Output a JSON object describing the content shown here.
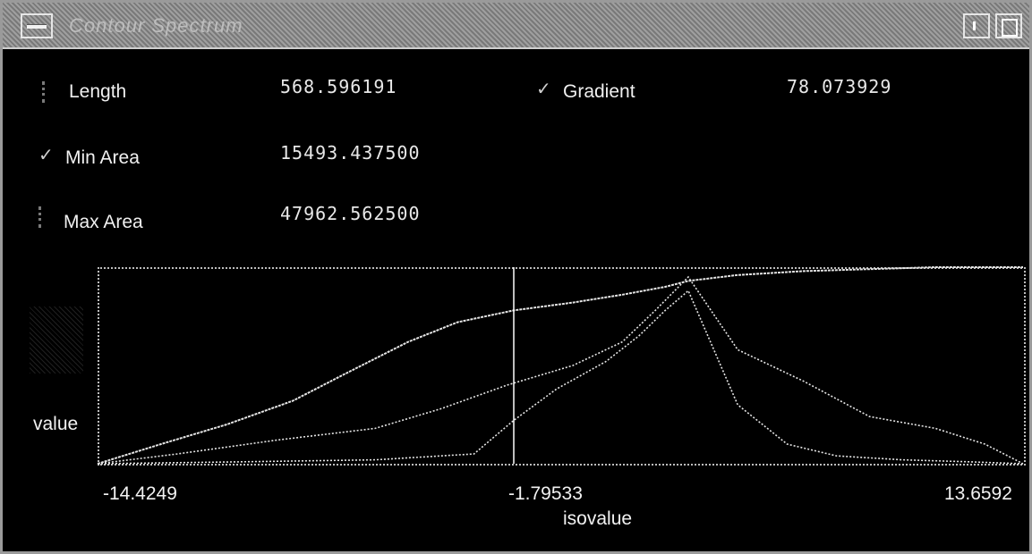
{
  "window": {
    "title": "Contour Spectrum",
    "menu_icon": "window-menu-icon",
    "minimize_icon": "minimize-icon",
    "maximize_icon": "maximize-icon"
  },
  "fields": {
    "length": {
      "label": "Length",
      "value": "568.596191",
      "checked": false
    },
    "gradient": {
      "label": "Gradient",
      "value": "78.073929",
      "checked": true
    },
    "min_area": {
      "label": "Min Area",
      "value": "15493.437500",
      "checked": true
    },
    "max_area": {
      "label": "Max Area",
      "value": "47962.562500",
      "checked": false
    }
  },
  "plot": {
    "ylabel": "value",
    "xlabel": "isovalue",
    "x_min_label": "-14.4249",
    "x_cursor_label": "-1.79533",
    "x_max_label": "13.6592",
    "colors": {
      "background": "#000000",
      "curves": "#e6e6e6",
      "cursor": "#ffffff"
    }
  },
  "chart_data": {
    "type": "line",
    "title": "",
    "xlabel": "isovalue",
    "ylabel": "value",
    "xlim": [
      -14.4249,
      13.6592
    ],
    "cursor_x": -1.79533,
    "series": [
      {
        "x": [
          -14.4249,
          -12.5,
          -10.5,
          -8.5,
          -7.0,
          -5.0,
          -3.5,
          -1.8,
          0.0,
          1.5,
          2.8,
          3.5,
          5.0,
          7.0,
          9.0,
          11.0,
          13.6592
        ],
        "y": [
          0.0,
          0.1,
          0.2,
          0.32,
          0.45,
          0.62,
          0.72,
          0.78,
          0.82,
          0.86,
          0.9,
          0.93,
          0.96,
          0.98,
          0.99,
          1.0,
          1.0
        ]
      },
      {
        "x": [
          -14.4249,
          -12.0,
          -9.0,
          -6.0,
          -4.0,
          -2.0,
          0.0,
          1.5,
          2.5,
          3.5,
          5.0,
          7.0,
          9.0,
          11.0,
          12.5,
          13.6592
        ],
        "y": [
          0.0,
          0.05,
          0.12,
          0.18,
          0.28,
          0.4,
          0.5,
          0.62,
          0.78,
          0.95,
          0.58,
          0.42,
          0.24,
          0.18,
          0.1,
          0.0
        ]
      },
      {
        "x": [
          -14.4249,
          -10.0,
          -6.0,
          -3.0,
          -1.8,
          -0.5,
          1.0,
          2.0,
          2.8,
          3.5,
          5.0,
          6.5,
          8.0,
          10.0,
          12.0,
          13.6592
        ],
        "y": [
          0.0,
          0.01,
          0.02,
          0.05,
          0.22,
          0.38,
          0.52,
          0.65,
          0.78,
          0.88,
          0.3,
          0.1,
          0.04,
          0.02,
          0.01,
          0.0
        ]
      }
    ]
  }
}
